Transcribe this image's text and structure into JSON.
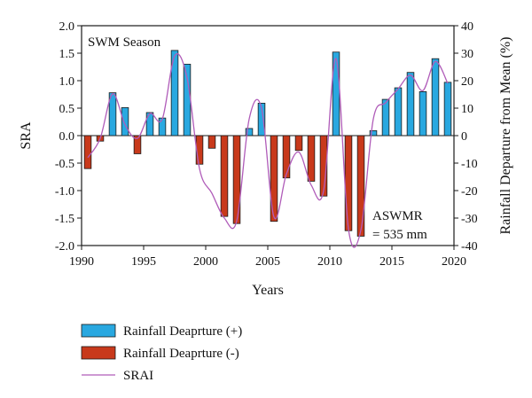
{
  "chart_data": {
    "type": "bar",
    "annotations": {
      "season": "SWM Season",
      "mean_line1": "ASWMR",
      "mean_line2": "= 535 mm"
    },
    "xlabel": "Years",
    "ylabel_left": "SRA",
    "ylabel_right": "Rainfall Departure from Mean (%)",
    "xlim": [
      1990,
      2020
    ],
    "ylim_left": [
      -2.0,
      2.0
    ],
    "ylim_right": [
      -40,
      40
    ],
    "xticks": [
      1990,
      1995,
      2000,
      2005,
      2010,
      2015,
      2020
    ],
    "yticks_left": [
      "2.0",
      "1.5",
      "1.0",
      "0.5",
      "0.0",
      "-0.5",
      "-1.0",
      "-1.5",
      "-2.0"
    ],
    "yticks_right": [
      "40",
      "30",
      "20",
      "10",
      "0",
      "-10",
      "-20",
      "-30",
      "-40"
    ],
    "years": [
      1990,
      1991,
      1992,
      1993,
      1994,
      1995,
      1996,
      1997,
      1998,
      1999,
      2000,
      2001,
      2002,
      2003,
      2004,
      2005,
      2006,
      2007,
      2008,
      2009,
      2010,
      2011,
      2012,
      2013,
      2014,
      2015,
      2016,
      2017,
      2018,
      2019
    ],
    "values": [
      -0.6,
      -0.1,
      0.78,
      0.51,
      -0.33,
      0.42,
      0.32,
      1.55,
      1.3,
      -0.52,
      -0.23,
      -1.47,
      -1.6,
      0.13,
      0.59,
      -1.56,
      -0.77,
      -0.27,
      -0.83,
      -1.1,
      1.52,
      -1.73,
      -1.83,
      0.09,
      0.66,
      0.87,
      1.15,
      0.8,
      1.4,
      0.97
    ],
    "srai_line": [
      -0.4,
      -0.05,
      0.76,
      0.2,
      -0.05,
      0.4,
      0.3,
      1.45,
      1.05,
      -0.6,
      -1.05,
      -1.5,
      -1.55,
      0.3,
      0.5,
      -1.48,
      -0.7,
      -0.3,
      -0.9,
      -1.0,
      1.4,
      -1.7,
      -1.72,
      0.3,
      0.6,
      0.85,
      1.1,
      0.82,
      1.35,
      0.95
    ],
    "colors": {
      "positive": "#29a8e0",
      "negative": "#c8391b",
      "line": "#b05cb9",
      "edge": "#1a1a1a"
    },
    "legend": {
      "placement": "bottom",
      "entries": [
        {
          "label": "Rainfall Deaprture (+)",
          "kind": "bar-positive"
        },
        {
          "label": "Rainfall Deaprture (-)",
          "kind": "bar-negative"
        },
        {
          "label": "SRAI",
          "kind": "line"
        }
      ]
    }
  }
}
